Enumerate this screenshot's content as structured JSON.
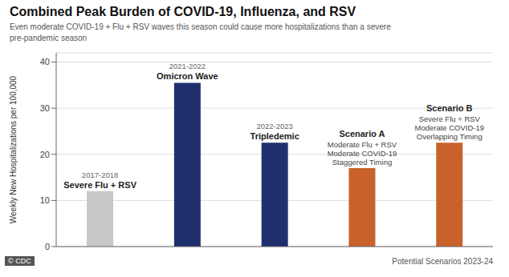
{
  "chart_data": {
    "type": "bar",
    "title": "Combined Peak Burden of COVID-19, Influenza, and RSV",
    "subtitle": "Even moderate COVID-19 + Flu + RSV waves this season could cause more hospitalizations than a severe\npre-pandemic season",
    "ylabel": "Weekly New Hospitalizations per 100,000",
    "note": "Potential Scenarios 2023-24",
    "credit": "© CDC",
    "categories": [
      "Severe Flu + RSV",
      "Omicron Wave",
      "Tripledemic",
      "Scenario A",
      "Scenario B"
    ],
    "values": [
      12,
      35.5,
      22.5,
      17,
      22.5
    ],
    "colors": [
      "#c8c8c8",
      "#1f2f6e",
      "#1f2f6e",
      "#c8622a",
      "#c8622a"
    ],
    "bar_annotations": [
      {
        "year": "2017-2018",
        "lines": []
      },
      {
        "year": "2021-2022",
        "lines": []
      },
      {
        "year": "2022-2023",
        "lines": []
      },
      {
        "lines": [
          "Moderate Flu + RSV",
          "Moderate COVID-19",
          "Staggered Timing"
        ]
      },
      {
        "lines": [
          "Severe Flu + RSV",
          "Moderate COVID-19",
          "Overlapping Timing"
        ]
      }
    ],
    "ylim": [
      0,
      42
    ],
    "yticks": [
      0,
      10,
      20,
      30,
      40
    ],
    "grid": true,
    "tick_labels": "y"
  }
}
